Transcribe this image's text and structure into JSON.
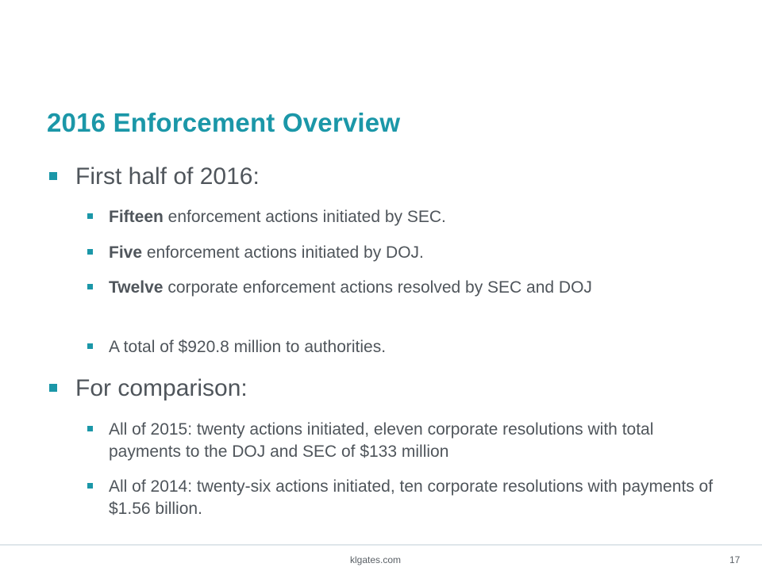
{
  "slide": {
    "title": "2016 Enforcement Overview",
    "sections": [
      {
        "heading": "First half of 2016:",
        "items": [
          {
            "bold": "Fifteen",
            "rest": " enforcement actions initiated by SEC."
          },
          {
            "bold": "Five",
            "rest": " enforcement actions initiated by DOJ."
          },
          {
            "bold": "Twelve",
            "rest": " corporate enforcement actions resolved by SEC and DOJ"
          },
          {
            "bold": "",
            "rest": "A total of $920.8 million to authorities."
          }
        ]
      },
      {
        "heading": "For comparison:",
        "items": [
          {
            "bold": "",
            "rest": "All of 2015: twenty actions initiated, eleven corporate resolutions with total payments to the DOJ and SEC of $133 million"
          },
          {
            "bold": "",
            "rest": "All of 2014: twenty-six actions initiated, ten corporate resolutions with payments of $1.56 billion."
          }
        ]
      }
    ]
  },
  "footer": {
    "url": "klgates.com",
    "page_number": "17"
  },
  "colors": {
    "accent": "#1b97a8",
    "text": "#4f555b"
  }
}
